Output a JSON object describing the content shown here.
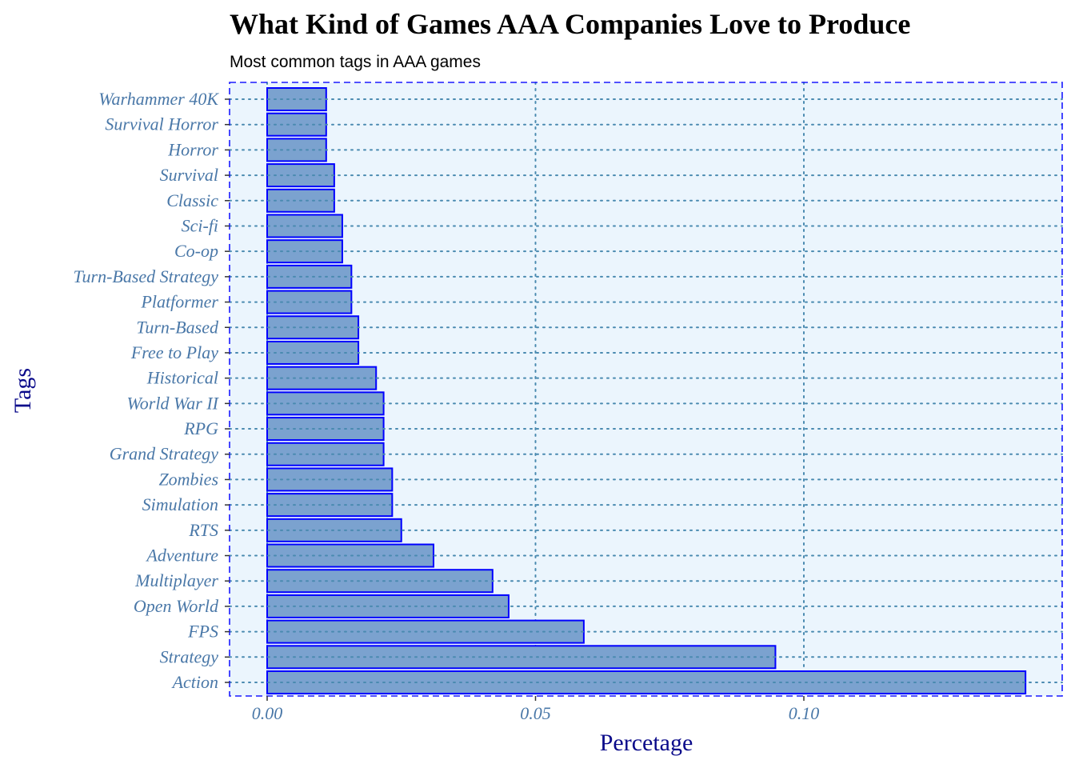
{
  "chart_data": {
    "type": "bar",
    "orientation": "horizontal",
    "title": "What Kind of Games AAA Companies Love to Produce",
    "subtitle": "Most common tags in AAA games",
    "xlabel": "Percetage",
    "ylabel": "Tags",
    "xlim": [
      -0.007,
      0.1415
    ],
    "x_ticks": [
      0.0,
      0.05,
      0.1
    ],
    "x_tick_labels": [
      "0.00",
      "0.05",
      "0.10"
    ],
    "grid": "dotted",
    "categories": [
      "Action",
      "Strategy",
      "FPS",
      "Open World",
      "Multiplayer",
      "Adventure",
      "RTS",
      "Simulation",
      "Zombies",
      "Grand Strategy",
      "RPG",
      "World War II",
      "Historical",
      "Free to Play",
      "Turn-Based",
      "Platformer",
      "Turn-Based Strategy",
      "Co-op",
      "Sci-fi",
      "Classic",
      "Survival",
      "Horror",
      "Survival Horror",
      "Warhammer 40K"
    ],
    "values": [
      0.1413,
      0.0947,
      0.059,
      0.045,
      0.042,
      0.031,
      0.025,
      0.0233,
      0.0233,
      0.0217,
      0.0217,
      0.0217,
      0.0203,
      0.017,
      0.017,
      0.0157,
      0.0157,
      0.014,
      0.014,
      0.0125,
      0.0125,
      0.011,
      0.011,
      0.011
    ],
    "colors": {
      "bar_fill": "#7ba2cf",
      "bar_stroke": "#0000ff",
      "panel_background": "#ebf5fd",
      "panel_border": "#1a1aff",
      "grid": "#4a8ab0",
      "tick_text": "#4a78a8",
      "axis_title": "#0a0a8a"
    }
  }
}
